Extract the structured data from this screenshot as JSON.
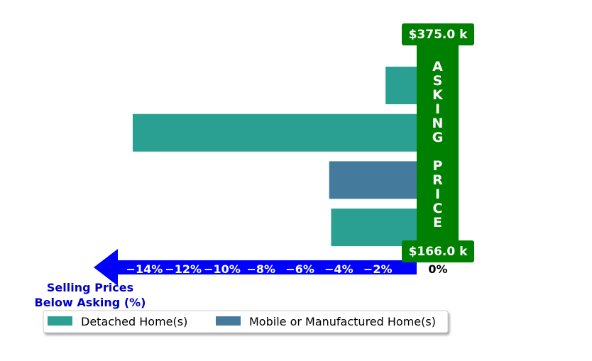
{
  "chart_data": {
    "type": "bar",
    "orientation": "horizontal",
    "xlim": [
      -15,
      0
    ],
    "x_ticks": [
      -14,
      -12,
      -10,
      -8,
      -6,
      -4,
      -2,
      0
    ],
    "x_tick_labels": [
      "−14%",
      "−12%",
      "−10%",
      "−8%",
      "−6%",
      "−4%",
      "−2%",
      "0%"
    ],
    "xlabel": "Selling Prices\nBelow Asking (%)",
    "asking_band": {
      "label": "ASKING PRICE",
      "top_label": "$375.0 k",
      "bottom_label": "$166.0 k"
    },
    "bars": [
      {
        "series": "Detached Home(s)",
        "value": -1.6
      },
      {
        "series": "Detached Home(s)",
        "value": -14.6
      },
      {
        "series": "Mobile or Manufactured Home(s)",
        "value": -4.5
      },
      {
        "series": "Detached Home(s)",
        "value": -4.4
      }
    ],
    "legend": {
      "placement": "bottom",
      "entries": [
        {
          "name": "Detached Home(s)",
          "color": "#2aa093"
        },
        {
          "name": "Mobile or Manufactured Home(s)",
          "color": "#447b9c"
        }
      ]
    },
    "colors": {
      "band": "#008000",
      "arrow": "#0000ff",
      "xlabel": "#0000cc"
    }
  }
}
